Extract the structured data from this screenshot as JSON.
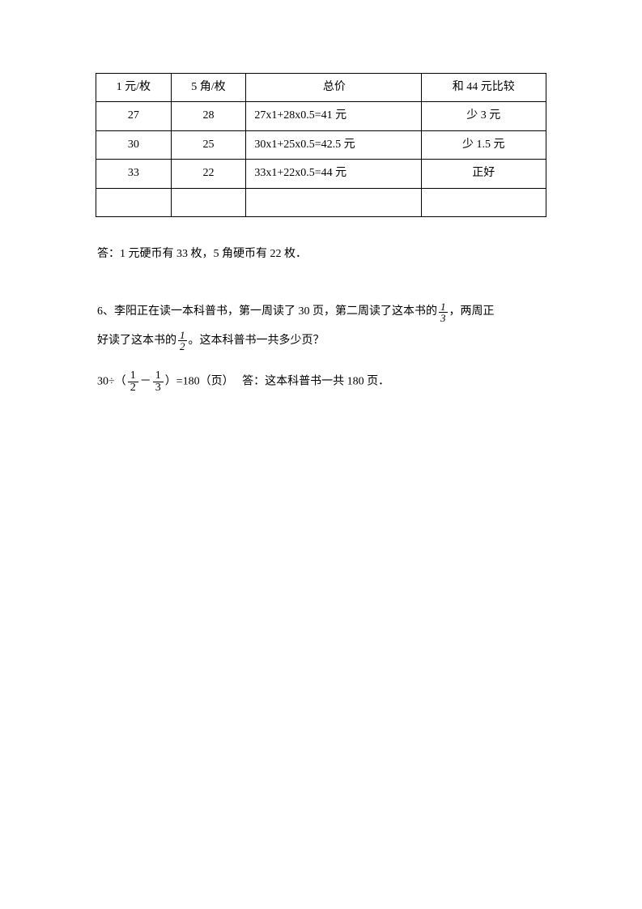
{
  "table": {
    "headers": [
      "1 元/枚",
      "5 角/枚",
      "总价",
      "和 44 元比较"
    ],
    "rows": [
      [
        "27",
        "28",
        "27x1+28x0.5=41 元",
        "少 3 元"
      ],
      [
        "30",
        "25",
        "30x1+25x0.5=42.5 元",
        "少 1.5 元"
      ],
      [
        "33",
        "22",
        "33x1+22x0.5=44 元",
        "正好"
      ],
      [
        "",
        "",
        "",
        ""
      ]
    ]
  },
  "answer5": "答：1 元硬币有 33 枚，5 角硬币有 22 枚．",
  "problem6": {
    "prefix": "6、李阳正在读一本科普书，第一周读了 30 页，第二周读了这本书的",
    "frac1": {
      "num": "1",
      "den": "3"
    },
    "mid1": "，两周正",
    "line2_start": "好读了这本书的",
    "frac2": {
      "num": "1",
      "den": "2"
    },
    "line2_end": "。这本科普书一共多少页？"
  },
  "solution6": {
    "start": "30÷（",
    "frac1": {
      "num": "1",
      "den": "2"
    },
    "minus": "－",
    "frac2": {
      "num": "1",
      "den": "3"
    },
    "mid": "）=180（页）",
    "answer": "答：这本科普书一共 180 页．"
  }
}
